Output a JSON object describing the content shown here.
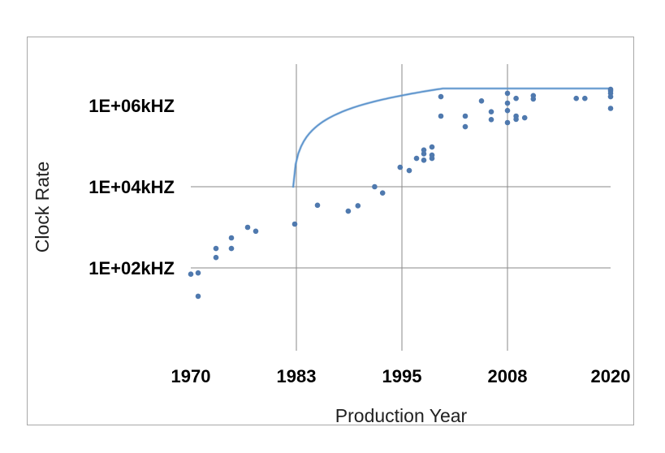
{
  "chart_data": {
    "type": "scatter",
    "title": "",
    "xlabel": "Production Year",
    "ylabel": "Clock Rate",
    "x_ticks": [
      "1970",
      "1983",
      "1995",
      "2008",
      "2020"
    ],
    "y_ticks": [
      "1E+06kHZ",
      "1E+04kHZ",
      "1E+02kHZ"
    ],
    "x_scale": "piecewise-categorical",
    "y_scale": "log10",
    "ylim_kHz": [
      1,
      10000000
    ],
    "grid": true,
    "legend": "none",
    "colors": {
      "points": "#4f79ae",
      "trend": "#5b93cc"
    },
    "series": [
      {
        "points": [
          [
            1970.0,
            70
          ],
          [
            1970.9,
            75
          ],
          [
            1970.9,
            20
          ],
          [
            1973.1,
            300
          ],
          [
            1973.1,
            180
          ],
          [
            1975.0,
            550
          ],
          [
            1975.0,
            300
          ],
          [
            1977.0,
            1000
          ],
          [
            1978.0,
            800
          ],
          [
            1982.8,
            1200
          ],
          [
            1985.4,
            3500
          ],
          [
            1988.9,
            2500
          ],
          [
            1990.0,
            3400
          ],
          [
            1991.9,
            10000
          ],
          [
            1992.8,
            7000
          ],
          [
            1994.8,
            30000
          ],
          [
            1995.9,
            25000
          ],
          [
            1996.8,
            50000
          ],
          [
            1997.7,
            80000
          ],
          [
            1997.7,
            65000
          ],
          [
            1997.7,
            45000
          ],
          [
            1998.7,
            95000
          ],
          [
            1998.7,
            60000
          ],
          [
            1998.7,
            50000
          ],
          [
            1999.8,
            1650000
          ],
          [
            1999.8,
            550000
          ],
          [
            2002.8,
            550000
          ],
          [
            2002.8,
            300000
          ],
          [
            2004.8,
            1300000
          ],
          [
            2006.0,
            700000
          ],
          [
            2006.0,
            450000
          ],
          [
            2008.0,
            2000000
          ],
          [
            2008.0,
            1150000
          ],
          [
            2008.0,
            750000
          ],
          [
            2008.0,
            380000
          ],
          [
            2009.0,
            1500000
          ],
          [
            2009.0,
            550000
          ],
          [
            2009.0,
            460000
          ],
          [
            2010.0,
            500000
          ],
          [
            2011.0,
            1750000
          ],
          [
            2011.0,
            1450000
          ],
          [
            2016.0,
            1500000
          ],
          [
            2017.0,
            1500000
          ],
          [
            2020.0,
            2500000
          ],
          [
            2020.0,
            2300000
          ],
          [
            2020.0,
            2000000
          ],
          [
            2020.0,
            1650000
          ],
          [
            2020.0,
            850000
          ]
        ]
      }
    ]
  }
}
